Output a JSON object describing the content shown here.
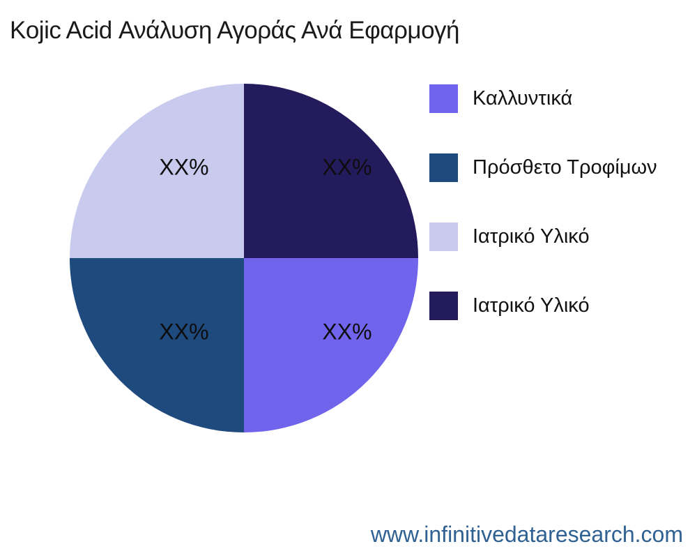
{
  "chart_data": {
    "type": "pie",
    "title": "Kojic Acid Ανάλυση Αγοράς Ανά Εφαρμογή",
    "slices": [
      {
        "label": "Καλλυντικά",
        "value": 25,
        "display_label": "XX%",
        "color": "#7164ec"
      },
      {
        "label": "Πρόσθετο Τροφίμων",
        "value": 25,
        "display_label": "XX%",
        "color": "#1f4a7e"
      },
      {
        "label": "Ιατρικό Υλικό",
        "value": 25,
        "display_label": "XX%",
        "color": "#c9cbee"
      },
      {
        "label": "Ιατρικό Υλικό",
        "value": 25,
        "display_label": "XX%",
        "color": "#241b5c"
      }
    ],
    "display_order_clockwise_from_top": [
      3,
      0,
      1,
      2
    ],
    "values_hidden_as": "XX%",
    "legend_position": "right",
    "label_color": "#0d0d0d",
    "title_color": "#1a1a1a"
  },
  "footer": {
    "website": "www.infinitivedataresearch.com",
    "color": "#2f6192"
  }
}
